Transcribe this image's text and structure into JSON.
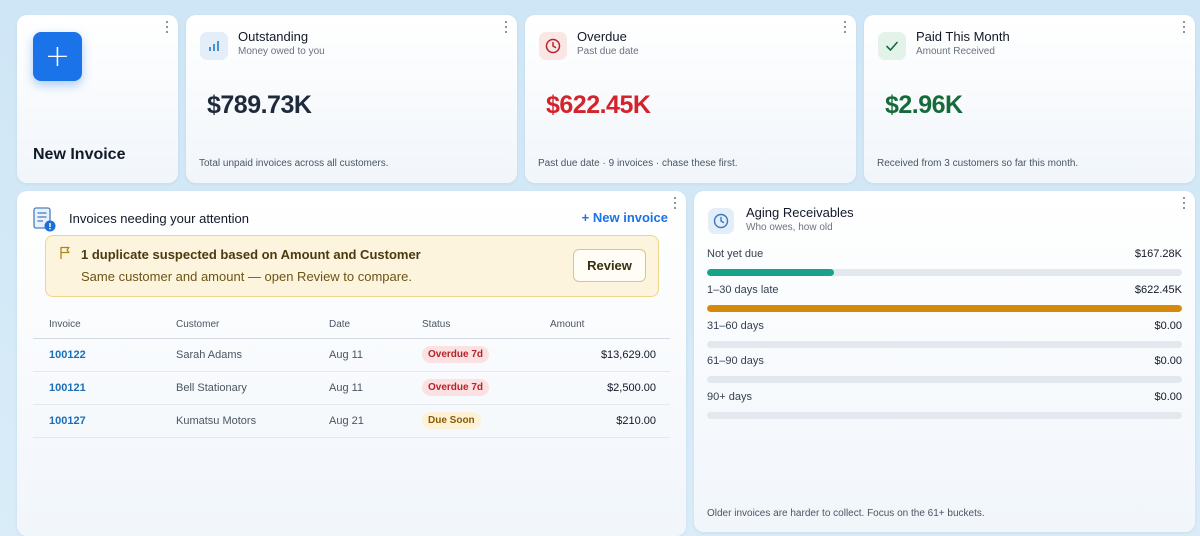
{
  "new_card": {
    "label": "New Invoice"
  },
  "kpis": [
    {
      "title": "Outstanding",
      "subtitle": "Money owed to you",
      "value": "$789.73K",
      "value_color": "#1f2a3a",
      "footer": "Total unpaid invoices across all customers.",
      "icon": "bar-chart-icon",
      "icon_bg": "#e4eef8"
    },
    {
      "title": "Overdue",
      "subtitle": "Past due date",
      "value": "$622.45K",
      "value_color": "#d4232b",
      "footer": "Past due date · 9 invoices · chase these first.",
      "icon": "clock-alert-icon",
      "icon_bg": "#fbe6e6"
    },
    {
      "title": "Paid This Month",
      "subtitle": "Amount Received",
      "value": "$2.96K",
      "value_color": "#176b3a",
      "footer": "Received from 3 customers so far this month.",
      "icon": "check-icon",
      "icon_bg": "#e4f3ea"
    }
  ],
  "attention": {
    "title": "Invoices needing your attention",
    "new_invoice_link": "+ New invoice",
    "alert": {
      "title": "1 duplicate suspected based on Amount and Customer",
      "subtitle": "Same customer and amount — open Review to compare.",
      "button": "Review"
    },
    "columns": [
      "Invoice",
      "Customer",
      "Date",
      "Status",
      "Amount"
    ],
    "rows": [
      {
        "invoice": "100122",
        "customer": "Sarah Adams",
        "date": "Aug 11",
        "status": "Overdue 7d",
        "status_kind": "overdue",
        "amount": "$13,629.00"
      },
      {
        "invoice": "100121",
        "customer": "Bell Stationary",
        "date": "Aug 11",
        "status": "Overdue 7d",
        "status_kind": "overdue",
        "amount": "$2,500.00"
      },
      {
        "invoice": "100127",
        "customer": "Kumatsu Motors",
        "date": "Aug 21",
        "status": "Due Soon",
        "status_kind": "due",
        "amount": "$210.00"
      }
    ],
    "status_colors": {
      "overdue": {
        "bg": "#fbe1e1",
        "fg": "#b4232b"
      },
      "due": {
        "bg": "#fdf2d6",
        "fg": "#8a5a00"
      }
    }
  },
  "aging": {
    "title": "Aging Receivables",
    "subtitle": "Who owes, how old",
    "buckets": [
      {
        "label": "Not yet due",
        "value": "$167.28K",
        "fraction": 0.268,
        "color": "#17a38a"
      },
      {
        "label": "1–30 days late",
        "value": "$622.45K",
        "fraction": 1.0,
        "color": "#d68a0c"
      },
      {
        "label": "31–60 days",
        "value": "$0.00",
        "fraction": 0,
        "color": "#9ca3af"
      },
      {
        "label": "61–90 days",
        "value": "$0.00",
        "fraction": 0,
        "color": "#9ca3af"
      },
      {
        "label": "90+ days",
        "value": "$0.00",
        "fraction": 0,
        "color": "#9ca3af"
      }
    ],
    "footer": "Older invoices are harder to collect. Focus on the 61+ buckets."
  }
}
